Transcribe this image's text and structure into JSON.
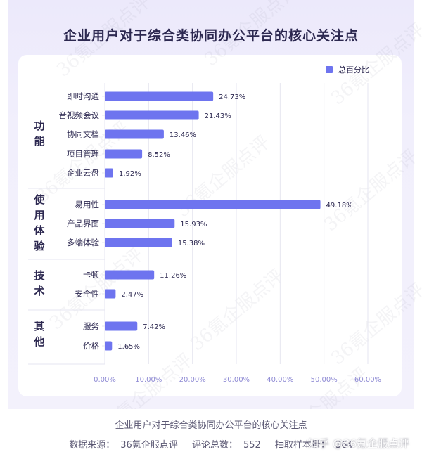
{
  "source": {
    "caption": "企业用户对于综合类协同办公平台的核心关注点",
    "data_source_label": "数据来源：",
    "data_source_value": "36氪企服点评",
    "review_count_label": "评论总数：",
    "review_count_value": "552",
    "sample_label": "抽取样本量：",
    "sample_value": "364"
  },
  "watermark": {
    "zhihu": "知乎 @36氪企服点评",
    "diagonal_text": "36氪企服点评"
  },
  "colors": {
    "bar": "#6e74ef",
    "bar_light": "#8b8ff5",
    "tick": "#8f8bd4",
    "label": "#2c2850",
    "grid": "#e6e6f0"
  },
  "chart_data": {
    "type": "bar",
    "orientation": "horizontal",
    "title": "企业用户对于综合类协同办公平台的核心关注点",
    "legend": {
      "label": "总百分比",
      "position": "top-right"
    },
    "xlim": [
      0,
      60
    ],
    "xticks": [
      "0.00%",
      "10.00%",
      "20.00%",
      "30.00%",
      "40.00%",
      "50.00%",
      "60.00%"
    ],
    "grid": true,
    "groups": [
      {
        "name": "功能",
        "items": [
          {
            "label": "即时沟通",
            "value": 24.73,
            "value_label": "24.73%"
          },
          {
            "label": "音视频会议",
            "value": 21.43,
            "value_label": "21.43%"
          },
          {
            "label": "协同文档",
            "value": 13.46,
            "value_label": "13.46%"
          },
          {
            "label": "项目管理",
            "value": 8.52,
            "value_label": "8.52%"
          },
          {
            "label": "企业云盘",
            "value": 1.92,
            "value_label": "1.92%"
          }
        ]
      },
      {
        "name": "使用体验",
        "items": [
          {
            "label": "易用性",
            "value": 49.18,
            "value_label": "49.18%"
          },
          {
            "label": "产品界面",
            "value": 15.93,
            "value_label": "15.93%"
          },
          {
            "label": "多端体验",
            "value": 15.38,
            "value_label": "15.38%"
          }
        ]
      },
      {
        "name": "技术",
        "items": [
          {
            "label": "卡顿",
            "value": 11.26,
            "value_label": "11.26%"
          },
          {
            "label": "安全性",
            "value": 2.47,
            "value_label": "2.47%"
          }
        ]
      },
      {
        "name": "其他",
        "items": [
          {
            "label": "服务",
            "value": 7.42,
            "value_label": "7.42%"
          },
          {
            "label": "价格",
            "value": 1.65,
            "value_label": "1.65%"
          }
        ]
      }
    ]
  }
}
